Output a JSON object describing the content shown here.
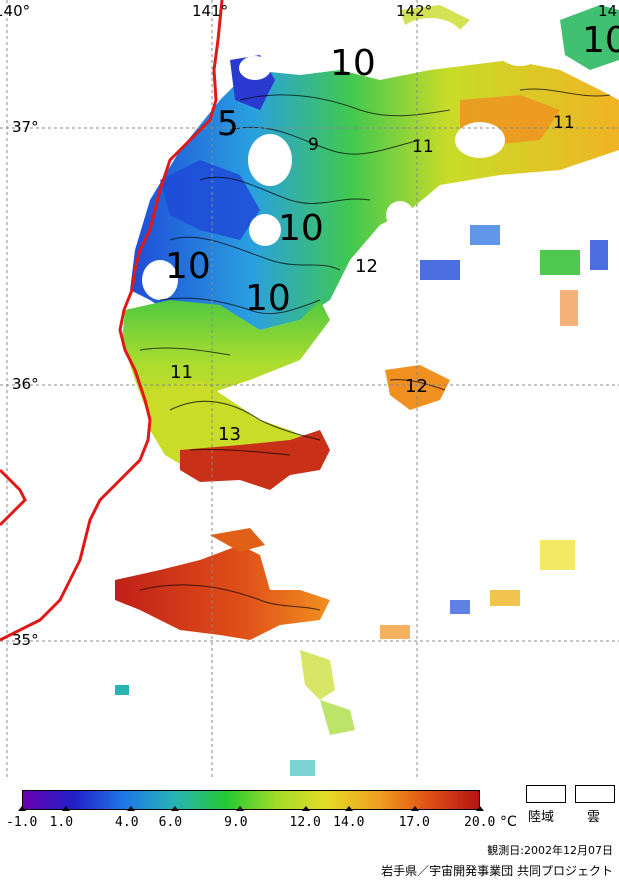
{
  "map": {
    "lon_labels": [
      "140°",
      "141°",
      "142°",
      "14"
    ],
    "lat_labels": [
      "37°",
      "36°",
      "35°"
    ],
    "isotherm_labels": [
      {
        "text": "10",
        "size": "large"
      },
      {
        "text": "10",
        "size": "large"
      },
      {
        "text": "5",
        "size": "large"
      },
      {
        "text": "9",
        "size": "small"
      },
      {
        "text": "11",
        "size": "small"
      },
      {
        "text": "11",
        "size": "small"
      },
      {
        "text": "10",
        "size": "large"
      },
      {
        "text": "12",
        "size": "small"
      },
      {
        "text": "10",
        "size": "large"
      },
      {
        "text": "10",
        "size": "large"
      },
      {
        "text": "11",
        "size": "small"
      },
      {
        "text": "12",
        "size": "small"
      },
      {
        "text": "13",
        "size": "small"
      }
    ]
  },
  "colorbar": {
    "ticks": [
      "-1.0",
      "1.0",
      "4.0",
      "6.0",
      "9.0",
      "12.0",
      "14.0",
      "17.0",
      "20.0"
    ],
    "unit": "°C",
    "colors": [
      "#6a00b0",
      "#2020c8",
      "#1e78e6",
      "#28b4b4",
      "#22c832",
      "#a0dc28",
      "#e6dc28",
      "#f0a020",
      "#e05014",
      "#b41414"
    ]
  },
  "legend": {
    "land_label": "陸域",
    "cloud_label": "雲"
  },
  "observation_date": "観測日:2002年12月07日",
  "credit": "岩手県／宇宙開発事業団 共同プロジェクト"
}
